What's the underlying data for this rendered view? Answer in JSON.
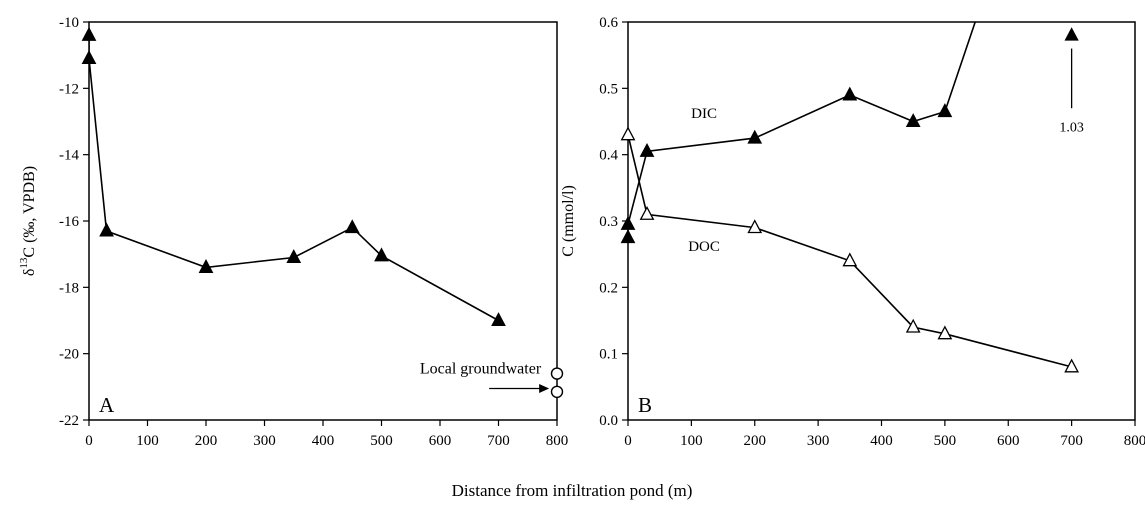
{
  "figure": {
    "xlabel": "Distance from infiltration pond (m)"
  },
  "chart_data": [
    {
      "type": "line",
      "panel_label": "A",
      "ylabel_parts": {
        "delta": "δ",
        "superscript": "13",
        "rest": "C (‰, VPDB)"
      },
      "xlim": [
        0,
        800
      ],
      "ylim": [
        -22,
        -10
      ],
      "xticks": [
        "0",
        "100",
        "200",
        "300",
        "400",
        "500",
        "600",
        "700",
        "800"
      ],
      "yticks": [
        "-22",
        "-20",
        "-18",
        "-16",
        "-14",
        "-12",
        "-10"
      ],
      "grid": false,
      "series": [
        {
          "marker": "filled-triangle",
          "points": [
            {
              "x": 0,
              "y": -10.4
            },
            {
              "x": 0,
              "y": -11.1
            },
            {
              "x": 30,
              "y": -16.3
            },
            {
              "x": 200,
              "y": -17.4
            },
            {
              "x": 350,
              "y": -17.1
            },
            {
              "x": 450,
              "y": -16.2
            },
            {
              "x": 500,
              "y": -17.05
            },
            {
              "x": 700,
              "y": -19.0
            }
          ]
        }
      ],
      "extra_points": {
        "marker": "open-circle",
        "points": [
          {
            "x": 800,
            "y": -20.6
          },
          {
            "x": 800,
            "y": -21.15
          }
        ]
      },
      "annotation": {
        "text": "Local groundwater",
        "arrow_to": {
          "x": 790,
          "y": -21.05
        }
      }
    },
    {
      "type": "line",
      "panel_label": "B",
      "ylabel": "C (mmol/l)",
      "xlim": [
        0,
        800
      ],
      "ylim": [
        0.0,
        0.6
      ],
      "xticks": [
        "0",
        "100",
        "200",
        "300",
        "400",
        "500",
        "600",
        "700",
        "800"
      ],
      "yticks": [
        "0.0",
        "0.1",
        "0.2",
        "0.3",
        "0.4",
        "0.5",
        "0.6"
      ],
      "grid": false,
      "series": [
        {
          "name": "DIC",
          "marker": "filled-triangle",
          "points": [
            {
              "x": 0,
              "y": 0.275
            },
            {
              "x": 0,
              "y": 0.295
            },
            {
              "x": 30,
              "y": 0.405
            },
            {
              "x": 200,
              "y": 0.425
            },
            {
              "x": 350,
              "y": 0.49
            },
            {
              "x": 450,
              "y": 0.45
            },
            {
              "x": 500,
              "y": 0.465
            },
            {
              "x": 700,
              "y": 1.03
            }
          ]
        },
        {
          "name": "DOC",
          "marker": "open-triangle",
          "points": [
            {
              "x": 0,
              "y": 0.43
            },
            {
              "x": 30,
              "y": 0.31
            },
            {
              "x": 200,
              "y": 0.29
            },
            {
              "x": 350,
              "y": 0.24
            },
            {
              "x": 450,
              "y": 0.14
            },
            {
              "x": 500,
              "y": 0.13
            },
            {
              "x": 700,
              "y": 0.08
            }
          ]
        }
      ],
      "offscale_note": {
        "text": "1.03",
        "x": 700
      }
    }
  ]
}
